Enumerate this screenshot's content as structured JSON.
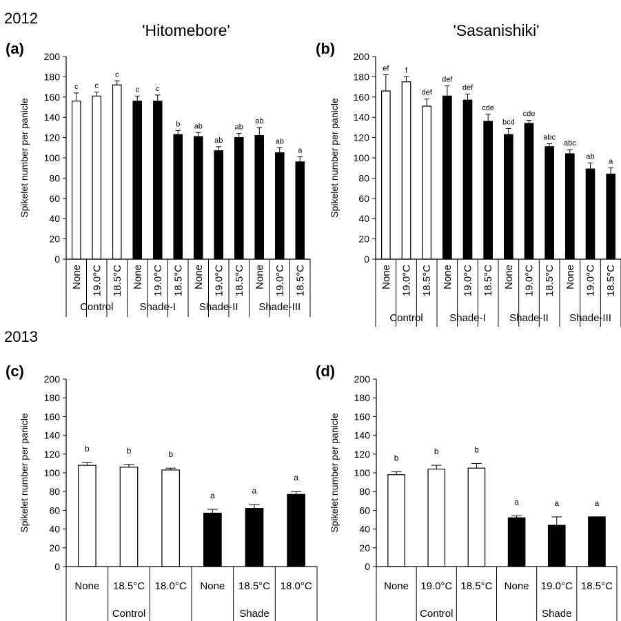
{
  "years": {
    "top": "2012",
    "bottom": "2013"
  },
  "column_titles": {
    "left": "'Hitomebore'",
    "right": "'Sasanishiki'"
  },
  "chart_data": [
    {
      "type": "bar",
      "panel_label": "(a)",
      "ylabel": "Spikelet number per panicle",
      "ylim": [
        0,
        200
      ],
      "yticks": [
        0,
        20,
        40,
        60,
        80,
        100,
        120,
        140,
        160,
        180,
        200
      ],
      "categories": [
        "None",
        "19.0°C",
        "18.5°C",
        "None",
        "19.0°C",
        "18.5°C",
        "None",
        "19.0°C",
        "18.5°C",
        "None",
        "19.0°C",
        "18.5°C"
      ],
      "groups": [
        {
          "label": "Control",
          "size": 3
        },
        {
          "label": "Shade-I",
          "size": 3
        },
        {
          "label": "Shade-II",
          "size": 3
        },
        {
          "label": "Shade-III",
          "size": 3
        }
      ],
      "values": [
        156,
        161,
        172,
        156,
        156,
        123,
        121,
        107,
        120,
        122,
        105,
        96
      ],
      "errors": [
        8,
        4,
        4,
        5,
        6,
        4,
        4,
        4,
        4,
        8,
        5,
        5
      ],
      "letters": [
        "c",
        "c",
        "c",
        "c",
        "c",
        "b",
        "ab",
        "ab",
        "ab",
        "ab",
        "ab",
        "a"
      ],
      "fill": [
        "#ffffff",
        "#ffffff",
        "#ffffff",
        "#000000",
        "#000000",
        "#000000",
        "#000000",
        "#000000",
        "#000000",
        "#000000",
        "#000000",
        "#000000"
      ]
    },
    {
      "type": "bar",
      "panel_label": "(b)",
      "ylabel": "Spikelet number per panicle",
      "ylim": [
        0,
        200
      ],
      "yticks": [
        0,
        20,
        40,
        60,
        80,
        100,
        120,
        140,
        160,
        180,
        200
      ],
      "categories": [
        "None",
        "19.0°C",
        "18.5°C",
        "None",
        "19.0°C",
        "18.5°C",
        "None",
        "19.0°C",
        "18.5°C",
        "None",
        "19.0°C",
        "18.5°C"
      ],
      "groups": [
        {
          "label": "Control",
          "size": 3
        },
        {
          "label": "Shade-I",
          "size": 3
        },
        {
          "label": "Shade-II",
          "size": 3
        },
        {
          "label": "Shade-III",
          "size": 3
        }
      ],
      "values": [
        166,
        175,
        151,
        161,
        157,
        136,
        123,
        134,
        111,
        104,
        89,
        84
      ],
      "errors": [
        16,
        5,
        7,
        10,
        6,
        7,
        6,
        3,
        3,
        4,
        6,
        6
      ],
      "letters": [
        "ef",
        "f",
        "def",
        "def",
        "def",
        "cde",
        "bcd",
        "cde",
        "abc",
        "abc",
        "ab",
        "a"
      ],
      "fill": [
        "#ffffff",
        "#ffffff",
        "#ffffff",
        "#000000",
        "#000000",
        "#000000",
        "#000000",
        "#000000",
        "#000000",
        "#000000",
        "#000000",
        "#000000"
      ]
    },
    {
      "type": "bar",
      "panel_label": "(c)",
      "ylabel": "Spikelet number per panicle",
      "ylim": [
        0,
        200
      ],
      "yticks": [
        0,
        20,
        40,
        60,
        80,
        100,
        120,
        140,
        160,
        180,
        200
      ],
      "categories": [
        "None",
        "18.5°C",
        "18.0°C",
        "None",
        "18.5°C",
        "18.0°C"
      ],
      "groups": [
        {
          "label": "Control",
          "size": 3
        },
        {
          "label": "Shade",
          "size": 3
        }
      ],
      "values": [
        108,
        106,
        103,
        57,
        62,
        77
      ],
      "errors": [
        3,
        3,
        2,
        4,
        4,
        3
      ],
      "letters": [
        "b",
        "b",
        "b",
        "a",
        "a",
        "a"
      ],
      "fill": [
        "#ffffff",
        "#ffffff",
        "#ffffff",
        "#000000",
        "#000000",
        "#000000"
      ]
    },
    {
      "type": "bar",
      "panel_label": "(d)",
      "ylabel": "Spikelet number per panicle",
      "ylim": [
        0,
        200
      ],
      "yticks": [
        0,
        20,
        40,
        60,
        80,
        100,
        120,
        140,
        160,
        180,
        200
      ],
      "categories": [
        "None",
        "19.0°C",
        "18.5°C",
        "None",
        "19.0°C",
        "18.5°C"
      ],
      "groups": [
        {
          "label": "Control",
          "size": 3
        },
        {
          "label": "Shade",
          "size": 3
        }
      ],
      "values": [
        98,
        104,
        105,
        52,
        44,
        53
      ],
      "errors": [
        3,
        4,
        5,
        2,
        9,
        0
      ],
      "letters": [
        "b",
        "b",
        "b",
        "a",
        "a",
        "a"
      ],
      "fill": [
        "#ffffff",
        "#ffffff",
        "#ffffff",
        "#000000",
        "#000000",
        "#000000"
      ]
    }
  ]
}
